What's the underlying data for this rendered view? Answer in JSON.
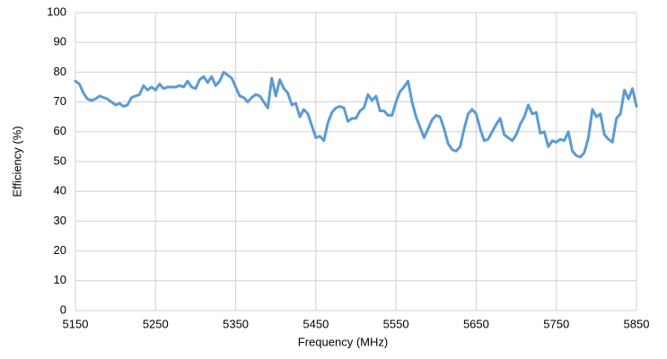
{
  "chart_data": {
    "type": "line",
    "xlabel": "Frequency (MHz)",
    "ylabel": "Efficiency (%)",
    "x": [
      5150,
      5155,
      5160,
      5165,
      5170,
      5175,
      5180,
      5185,
      5190,
      5195,
      5200,
      5205,
      5210,
      5215,
      5220,
      5225,
      5230,
      5235,
      5240,
      5245,
      5250,
      5255,
      5260,
      5265,
      5270,
      5275,
      5280,
      5285,
      5290,
      5295,
      5300,
      5305,
      5310,
      5315,
      5320,
      5325,
      5330,
      5335,
      5340,
      5345,
      5350,
      5355,
      5360,
      5365,
      5370,
      5375,
      5380,
      5385,
      5390,
      5395,
      5400,
      5405,
      5410,
      5415,
      5420,
      5425,
      5430,
      5435,
      5440,
      5445,
      5450,
      5455,
      5460,
      5465,
      5470,
      5475,
      5480,
      5485,
      5490,
      5495,
      5500,
      5505,
      5510,
      5515,
      5520,
      5525,
      5530,
      5535,
      5540,
      5545,
      5550,
      5555,
      5560,
      5565,
      5570,
      5575,
      5580,
      5585,
      5590,
      5595,
      5600,
      5605,
      5610,
      5615,
      5620,
      5625,
      5630,
      5635,
      5640,
      5645,
      5650,
      5655,
      5660,
      5665,
      5670,
      5675,
      5680,
      5685,
      5690,
      5695,
      5700,
      5705,
      5710,
      5715,
      5720,
      5725,
      5730,
      5735,
      5740,
      5745,
      5750,
      5755,
      5760,
      5765,
      5770,
      5775,
      5780,
      5785,
      5790,
      5795,
      5800,
      5805,
      5810,
      5815,
      5820,
      5825,
      5830,
      5835,
      5840,
      5845,
      5850
    ],
    "values": [
      77,
      76,
      73,
      71,
      70.5,
      71,
      72,
      71.5,
      71,
      70,
      69,
      69.5,
      68.5,
      69,
      71.5,
      72,
      72.5,
      75.5,
      74,
      75,
      74,
      76,
      74.5,
      75,
      75,
      75,
      75.5,
      75,
      77,
      75,
      74.5,
      77.5,
      78.5,
      76.5,
      78.5,
      75.5,
      77,
      80,
      79,
      78,
      75,
      72,
      71.5,
      70,
      71.5,
      72.5,
      72,
      70,
      68,
      78,
      72,
      77.5,
      74.5,
      73,
      69,
      69.5,
      65,
      67.5,
      66,
      62,
      58,
      58.5,
      57,
      63,
      66.5,
      68,
      68.5,
      68,
      63.5,
      64.5,
      64.5,
      67,
      68,
      72.5,
      70.5,
      72,
      67,
      67,
      65.5,
      65.5,
      70,
      73.5,
      75,
      77,
      70,
      65,
      61.5,
      58,
      61,
      64,
      65.5,
      65,
      61,
      56,
      54,
      53.5,
      55,
      61,
      66,
      67.5,
      66,
      61,
      57,
      57.5,
      60,
      62.5,
      64.5,
      59,
      58,
      57,
      59,
      62.5,
      65,
      69,
      66,
      66.5,
      59.5,
      60,
      55,
      57,
      56.5,
      57.5,
      57,
      60,
      53.5,
      52,
      51.5,
      53,
      58,
      67.5,
      65,
      66,
      59,
      57.5,
      56.5,
      64.5,
      66,
      74,
      71,
      74.5,
      68.5
    ],
    "color": "#5b9bd5",
    "xlim": [
      5150,
      5850
    ],
    "xticks": [
      5150,
      5250,
      5350,
      5450,
      5550,
      5650,
      5750,
      5850
    ],
    "ylim": [
      0,
      100
    ],
    "yticks": [
      0,
      10,
      20,
      30,
      40,
      50,
      60,
      70,
      80,
      90,
      100
    ],
    "grid": true
  }
}
